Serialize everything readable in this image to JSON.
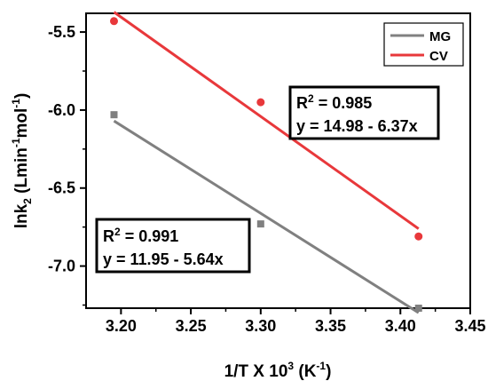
{
  "chart_data": {
    "type": "scatter",
    "xlabel": "1/T X 10",
    "xlabel_sup": "3",
    "xlabel_tail": " (K",
    "xlabel_tail_sup": "-1",
    "xlabel_end": ")",
    "ylabel_base": "lnk",
    "ylabel_sub": "2",
    "ylabel_mid": " (Lmin",
    "ylabel_sup1": "-1",
    "ylabel_mid2": "mol",
    "ylabel_sup2": "-1",
    "ylabel_end": ")",
    "xlim": [
      3.175,
      3.45
    ],
    "ylim": [
      -7.27,
      -5.38
    ],
    "x_ticks": [
      3.2,
      3.25,
      3.3,
      3.35,
      3.4,
      3.45
    ],
    "x_tick_labels": [
      "3.20",
      "3.25",
      "3.30",
      "3.35",
      "3.40",
      "3.45"
    ],
    "y_ticks": [
      -5.5,
      -6.0,
      -6.5,
      -7.0
    ],
    "y_tick_labels": [
      "-5.5",
      "-6.0",
      "-6.5",
      "-7.0"
    ],
    "grid": false,
    "legend_position": "top-right",
    "series": [
      {
        "name": "MG",
        "color": "#808080",
        "marker": "square",
        "x": [
          3.195,
          3.3,
          3.413
        ],
        "y": [
          -6.03,
          -6.73,
          -7.27
        ],
        "fit": {
          "intercept": 11.95,
          "slope": -5.64
        }
      },
      {
        "name": "CV",
        "color": "#e8383b",
        "marker": "circle",
        "x": [
          3.195,
          3.3,
          3.413
        ],
        "y": [
          -5.43,
          -5.95,
          -6.81
        ],
        "fit": {
          "intercept": 14.98,
          "slope": -6.37
        }
      }
    ],
    "annotations": [
      {
        "r2_label": "R",
        "r2_sup": "2",
        "r2_value": " = 0.985",
        "equation": "y = 14.98 - 6.37x"
      },
      {
        "r2_label": "R",
        "r2_sup": "2",
        "r2_value": " = 0.991",
        "equation": "y = 11.95 - 5.64x"
      }
    ]
  }
}
